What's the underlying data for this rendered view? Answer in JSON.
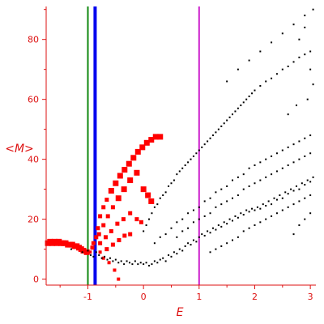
{
  "chart_data": {
    "type": "scatter",
    "title": "",
    "xlabel": "E",
    "ylabel": "<M>",
    "xlim": [
      -1.75,
      3.1
    ],
    "ylim": [
      -2,
      91
    ],
    "grid": false,
    "x_ticks": [
      {
        "value": -1,
        "label": "-1"
      },
      {
        "value": 0,
        "label": "0"
      },
      {
        "value": 1,
        "label": "1"
      },
      {
        "value": 2,
        "label": "2"
      },
      {
        "value": 3,
        "label": "3"
      }
    ],
    "y_ticks": [
      {
        "value": 0,
        "label": "0"
      },
      {
        "value": 20,
        "label": "20"
      },
      {
        "value": 40,
        "label": "40"
      },
      {
        "value": 60,
        "label": "60"
      },
      {
        "value": 80,
        "label": "80"
      }
    ],
    "vertical_lines": [
      {
        "x": -1.0,
        "color": "#118811"
      },
      {
        "x": -0.87,
        "color": "#0000ee"
      },
      {
        "x": 1.0,
        "color": "#cc22cc"
      }
    ],
    "series": [
      {
        "color": "#ff0000",
        "marker": "red-squares",
        "points": [
          [
            -1.72,
            12
          ],
          [
            -1.68,
            12.5
          ],
          [
            -1.64,
            12
          ],
          [
            -1.6,
            12.5
          ],
          [
            -1.56,
            12
          ],
          [
            -1.52,
            12.5
          ],
          [
            -1.48,
            12
          ],
          [
            -1.44,
            12
          ],
          [
            -1.4,
            12
          ],
          [
            -1.36,
            11.5
          ],
          [
            -1.32,
            11.5
          ],
          [
            -1.28,
            11.5
          ],
          [
            -1.24,
            11
          ],
          [
            -1.2,
            11
          ],
          [
            -1.16,
            10.5
          ],
          [
            -1.12,
            10
          ],
          [
            -1.08,
            9.5
          ],
          [
            -1.02,
            9
          ],
          [
            -0.96,
            9
          ],
          [
            -0.92,
            10.5
          ],
          [
            -0.9,
            12
          ],
          [
            -0.85,
            14
          ],
          [
            -0.82,
            17
          ],
          [
            -0.78,
            21
          ],
          [
            -0.72,
            24
          ],
          [
            -0.66,
            26.5
          ],
          [
            -0.58,
            29.5
          ],
          [
            -0.5,
            32
          ],
          [
            -0.42,
            34.5
          ],
          [
            -0.34,
            36.5
          ],
          [
            -0.26,
            38.5
          ],
          [
            -0.18,
            40.5
          ],
          [
            -0.1,
            42.5
          ],
          [
            -0.02,
            44
          ],
          [
            0.06,
            45.5
          ],
          [
            0.14,
            46.5
          ],
          [
            0.22,
            47.5
          ],
          [
            0.3,
            47.5
          ],
          [
            -0.8,
            15
          ],
          [
            -0.72,
            18
          ],
          [
            -0.64,
            21
          ],
          [
            -0.55,
            24
          ],
          [
            -0.45,
            27
          ],
          [
            -0.35,
            30
          ],
          [
            -0.24,
            33
          ],
          [
            -0.12,
            35.5
          ],
          [
            0.0,
            30
          ],
          [
            0.08,
            28
          ],
          [
            0.14,
            26
          ],
          [
            -0.78,
            12
          ],
          [
            -0.68,
            14
          ],
          [
            -0.58,
            16
          ],
          [
            -0.47,
            18.5
          ],
          [
            -0.36,
            20
          ],
          [
            -0.24,
            22
          ],
          [
            -0.12,
            20
          ],
          [
            -0.04,
            19
          ],
          [
            -0.78,
            9
          ],
          [
            -0.66,
            10
          ],
          [
            -0.55,
            11.5
          ],
          [
            -0.44,
            13
          ],
          [
            -0.34,
            14.5
          ],
          [
            -0.24,
            15
          ],
          [
            -0.72,
            7
          ],
          [
            -0.62,
            5.5
          ],
          [
            -0.52,
            3
          ],
          [
            -0.45,
            0
          ]
        ]
      },
      {
        "color": "#000000",
        "marker": "black-dots",
        "points": [
          [
            -1.3,
            10
          ],
          [
            -1.1,
            9
          ],
          [
            -1.0,
            9.5
          ],
          [
            -0.95,
            8
          ],
          [
            -0.9,
            7.5
          ],
          [
            -0.85,
            9
          ],
          [
            -0.8,
            8
          ],
          [
            -0.75,
            7
          ],
          [
            -0.7,
            7.5
          ],
          [
            -0.65,
            6.5
          ],
          [
            -0.6,
            7
          ],
          [
            -0.55,
            6
          ],
          [
            -0.5,
            6.5
          ],
          [
            -0.45,
            5.5
          ],
          [
            -0.4,
            6
          ],
          [
            -0.35,
            5
          ],
          [
            -0.3,
            6
          ],
          [
            -0.25,
            5.5
          ],
          [
            -0.2,
            5
          ],
          [
            -0.15,
            6
          ],
          [
            -0.1,
            5
          ],
          [
            -0.05,
            5.5
          ],
          [
            0.0,
            5
          ],
          [
            0.05,
            5.5
          ],
          [
            0.1,
            4.5
          ],
          [
            0.15,
            5
          ],
          [
            0.2,
            6
          ],
          [
            0.25,
            5.5
          ],
          [
            0.3,
            6.5
          ],
          [
            0.35,
            7
          ],
          [
            0.4,
            6
          ],
          [
            0.45,
            8
          ],
          [
            0.5,
            7.5
          ],
          [
            0.55,
            9
          ],
          [
            0.6,
            8.5
          ],
          [
            0.65,
            10
          ],
          [
            0.7,
            9.5
          ],
          [
            0.75,
            11
          ],
          [
            0.8,
            12
          ],
          [
            0.85,
            11.5
          ],
          [
            0.9,
            13
          ],
          [
            0.95,
            12.5
          ],
          [
            1.0,
            14
          ],
          [
            1.05,
            15
          ],
          [
            1.1,
            14.5
          ],
          [
            1.15,
            16
          ],
          [
            1.2,
            15.5
          ],
          [
            1.25,
            17
          ],
          [
            1.3,
            16.5
          ],
          [
            1.35,
            18
          ],
          [
            1.4,
            17.5
          ],
          [
            1.45,
            19
          ],
          [
            1.5,
            18.5
          ],
          [
            1.55,
            20
          ],
          [
            1.6,
            19.5
          ],
          [
            1.65,
            21
          ],
          [
            1.7,
            20.5
          ],
          [
            1.75,
            22
          ],
          [
            1.8,
            21.5
          ],
          [
            1.85,
            23
          ],
          [
            1.9,
            22.5
          ],
          [
            1.95,
            23.5
          ],
          [
            2.0,
            23
          ],
          [
            2.05,
            24
          ],
          [
            2.1,
            23.5
          ],
          [
            2.15,
            25
          ],
          [
            2.2,
            24.5
          ],
          [
            2.25,
            26
          ],
          [
            2.3,
            25
          ],
          [
            2.35,
            27
          ],
          [
            2.4,
            26.5
          ],
          [
            2.45,
            28
          ],
          [
            2.5,
            27
          ],
          [
            2.55,
            29
          ],
          [
            2.6,
            28.5
          ],
          [
            2.65,
            30
          ],
          [
            2.7,
            29.5
          ],
          [
            2.75,
            31
          ],
          [
            2.8,
            30
          ],
          [
            2.85,
            32
          ],
          [
            2.9,
            31.5
          ],
          [
            2.95,
            33
          ],
          [
            3.0,
            32.5
          ],
          [
            3.05,
            34
          ],
          [
            0.0,
            16
          ],
          [
            0.05,
            18
          ],
          [
            0.1,
            20
          ],
          [
            0.15,
            22
          ],
          [
            0.2,
            24
          ],
          [
            0.25,
            25
          ],
          [
            0.3,
            27
          ],
          [
            0.35,
            28
          ],
          [
            0.4,
            29
          ],
          [
            0.45,
            31
          ],
          [
            0.5,
            32
          ],
          [
            0.55,
            33
          ],
          [
            0.6,
            35
          ],
          [
            0.65,
            36
          ],
          [
            0.7,
            37
          ],
          [
            0.75,
            38
          ],
          [
            0.8,
            39
          ],
          [
            0.85,
            40
          ],
          [
            0.9,
            41
          ],
          [
            0.95,
            42
          ],
          [
            1.0,
            43
          ],
          [
            1.05,
            44
          ],
          [
            1.1,
            45
          ],
          [
            1.15,
            46
          ],
          [
            1.2,
            47
          ],
          [
            1.25,
            48
          ],
          [
            1.3,
            49
          ],
          [
            1.35,
            50
          ],
          [
            1.4,
            51
          ],
          [
            1.45,
            52
          ],
          [
            1.5,
            53
          ],
          [
            1.55,
            54
          ],
          [
            1.6,
            55
          ],
          [
            1.65,
            56
          ],
          [
            1.7,
            57
          ],
          [
            1.75,
            58
          ],
          [
            1.8,
            59
          ],
          [
            1.85,
            60
          ],
          [
            1.9,
            61
          ],
          [
            1.95,
            62
          ],
          [
            2.0,
            63
          ],
          [
            2.1,
            64.5
          ],
          [
            2.2,
            66
          ],
          [
            2.3,
            67
          ],
          [
            2.4,
            68.5
          ],
          [
            2.5,
            70
          ],
          [
            2.6,
            71
          ],
          [
            2.7,
            72.5
          ],
          [
            2.8,
            74
          ],
          [
            2.9,
            75
          ],
          [
            3.0,
            76
          ],
          [
            0.2,
            12
          ],
          [
            0.3,
            14
          ],
          [
            0.4,
            15
          ],
          [
            0.5,
            17
          ],
          [
            0.6,
            19
          ],
          [
            0.7,
            20
          ],
          [
            0.8,
            22
          ],
          [
            0.9,
            23
          ],
          [
            1.0,
            24
          ],
          [
            1.1,
            26
          ],
          [
            1.2,
            27
          ],
          [
            1.3,
            29
          ],
          [
            1.4,
            30
          ],
          [
            1.5,
            31
          ],
          [
            1.6,
            33
          ],
          [
            1.7,
            34
          ],
          [
            1.8,
            35
          ],
          [
            1.9,
            37
          ],
          [
            2.0,
            38
          ],
          [
            2.1,
            39
          ],
          [
            2.2,
            40
          ],
          [
            2.3,
            41
          ],
          [
            2.4,
            42
          ],
          [
            2.5,
            43
          ],
          [
            2.6,
            44
          ],
          [
            2.7,
            45
          ],
          [
            2.8,
            46
          ],
          [
            2.9,
            47
          ],
          [
            3.0,
            48
          ],
          [
            0.6,
            14
          ],
          [
            0.7,
            16
          ],
          [
            0.8,
            17
          ],
          [
            0.9,
            19
          ],
          [
            1.0,
            20
          ],
          [
            1.1,
            21
          ],
          [
            1.2,
            22
          ],
          [
            1.3,
            24
          ],
          [
            1.4,
            25
          ],
          [
            1.5,
            26
          ],
          [
            1.6,
            27
          ],
          [
            1.7,
            28
          ],
          [
            1.8,
            30
          ],
          [
            1.9,
            31
          ],
          [
            2.0,
            32
          ],
          [
            2.1,
            33
          ],
          [
            2.2,
            34
          ],
          [
            2.3,
            35
          ],
          [
            2.4,
            36
          ],
          [
            2.5,
            37
          ],
          [
            2.6,
            38
          ],
          [
            2.7,
            39
          ],
          [
            2.8,
            40
          ],
          [
            2.9,
            41
          ],
          [
            3.0,
            42
          ],
          [
            1.2,
            9
          ],
          [
            1.3,
            10
          ],
          [
            1.4,
            11
          ],
          [
            1.5,
            12
          ],
          [
            1.6,
            13
          ],
          [
            1.7,
            14
          ],
          [
            1.8,
            16
          ],
          [
            1.9,
            17
          ],
          [
            2.0,
            18
          ],
          [
            2.1,
            19
          ],
          [
            2.2,
            20
          ],
          [
            2.3,
            21
          ],
          [
            2.4,
            22
          ],
          [
            2.5,
            23
          ],
          [
            2.6,
            24
          ],
          [
            2.7,
            25
          ],
          [
            2.8,
            26
          ],
          [
            2.9,
            27
          ],
          [
            3.0,
            28
          ],
          [
            1.5,
            66
          ],
          [
            1.7,
            70
          ],
          [
            1.9,
            73
          ],
          [
            2.1,
            76
          ],
          [
            2.3,
            79
          ],
          [
            2.5,
            82
          ],
          [
            2.7,
            85
          ],
          [
            2.9,
            88
          ],
          [
            3.05,
            90
          ],
          [
            2.8,
            80
          ],
          [
            2.9,
            84
          ],
          [
            3.0,
            70
          ],
          [
            3.05,
            65
          ],
          [
            2.7,
            15
          ],
          [
            2.8,
            18
          ],
          [
            2.9,
            20
          ],
          [
            3.0,
            22
          ],
          [
            2.6,
            55
          ],
          [
            2.75,
            58
          ],
          [
            2.95,
            60
          ]
        ]
      }
    ]
  }
}
